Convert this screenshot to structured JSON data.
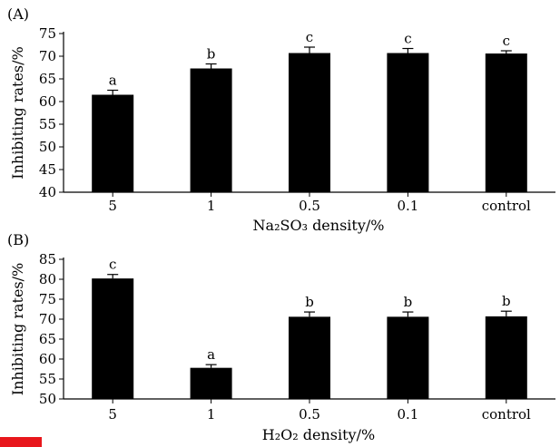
{
  "chart_data": [
    {
      "type": "bar",
      "panel_label": "(A)",
      "categories": [
        "5",
        "1",
        "0.5",
        "0.1",
        "control"
      ],
      "values": [
        61.5,
        67.3,
        70.7,
        70.7,
        70.6
      ],
      "errors": [
        1.0,
        1.0,
        1.3,
        1.0,
        0.6
      ],
      "significance": [
        "a",
        "b",
        "c",
        "c",
        "c"
      ],
      "xlabel": "Na₂SO₃ density/%",
      "ylabel": "Inhibiting rates/%",
      "ylim": [
        40,
        75
      ],
      "yticks": [
        40,
        45,
        50,
        55,
        60,
        65,
        70,
        75
      ],
      "bar_color": "#000000",
      "grid": false
    },
    {
      "type": "bar",
      "panel_label": "(B)",
      "categories": [
        "5",
        "1",
        "0.5",
        "0.1",
        "control"
      ],
      "values": [
        80.2,
        57.8,
        70.6,
        70.6,
        70.7
      ],
      "errors": [
        1.0,
        0.8,
        1.2,
        1.2,
        1.3
      ],
      "significance": [
        "c",
        "a",
        "b",
        "b",
        "b"
      ],
      "xlabel": "H₂O₂ density/%",
      "ylabel": "Inhibiting rates/%",
      "ylim": [
        50,
        85
      ],
      "yticks": [
        50,
        55,
        60,
        65,
        70,
        75,
        80,
        85
      ],
      "bar_color": "#000000",
      "grid": false
    }
  ],
  "decor": {
    "mark_color": "#e8171c"
  }
}
